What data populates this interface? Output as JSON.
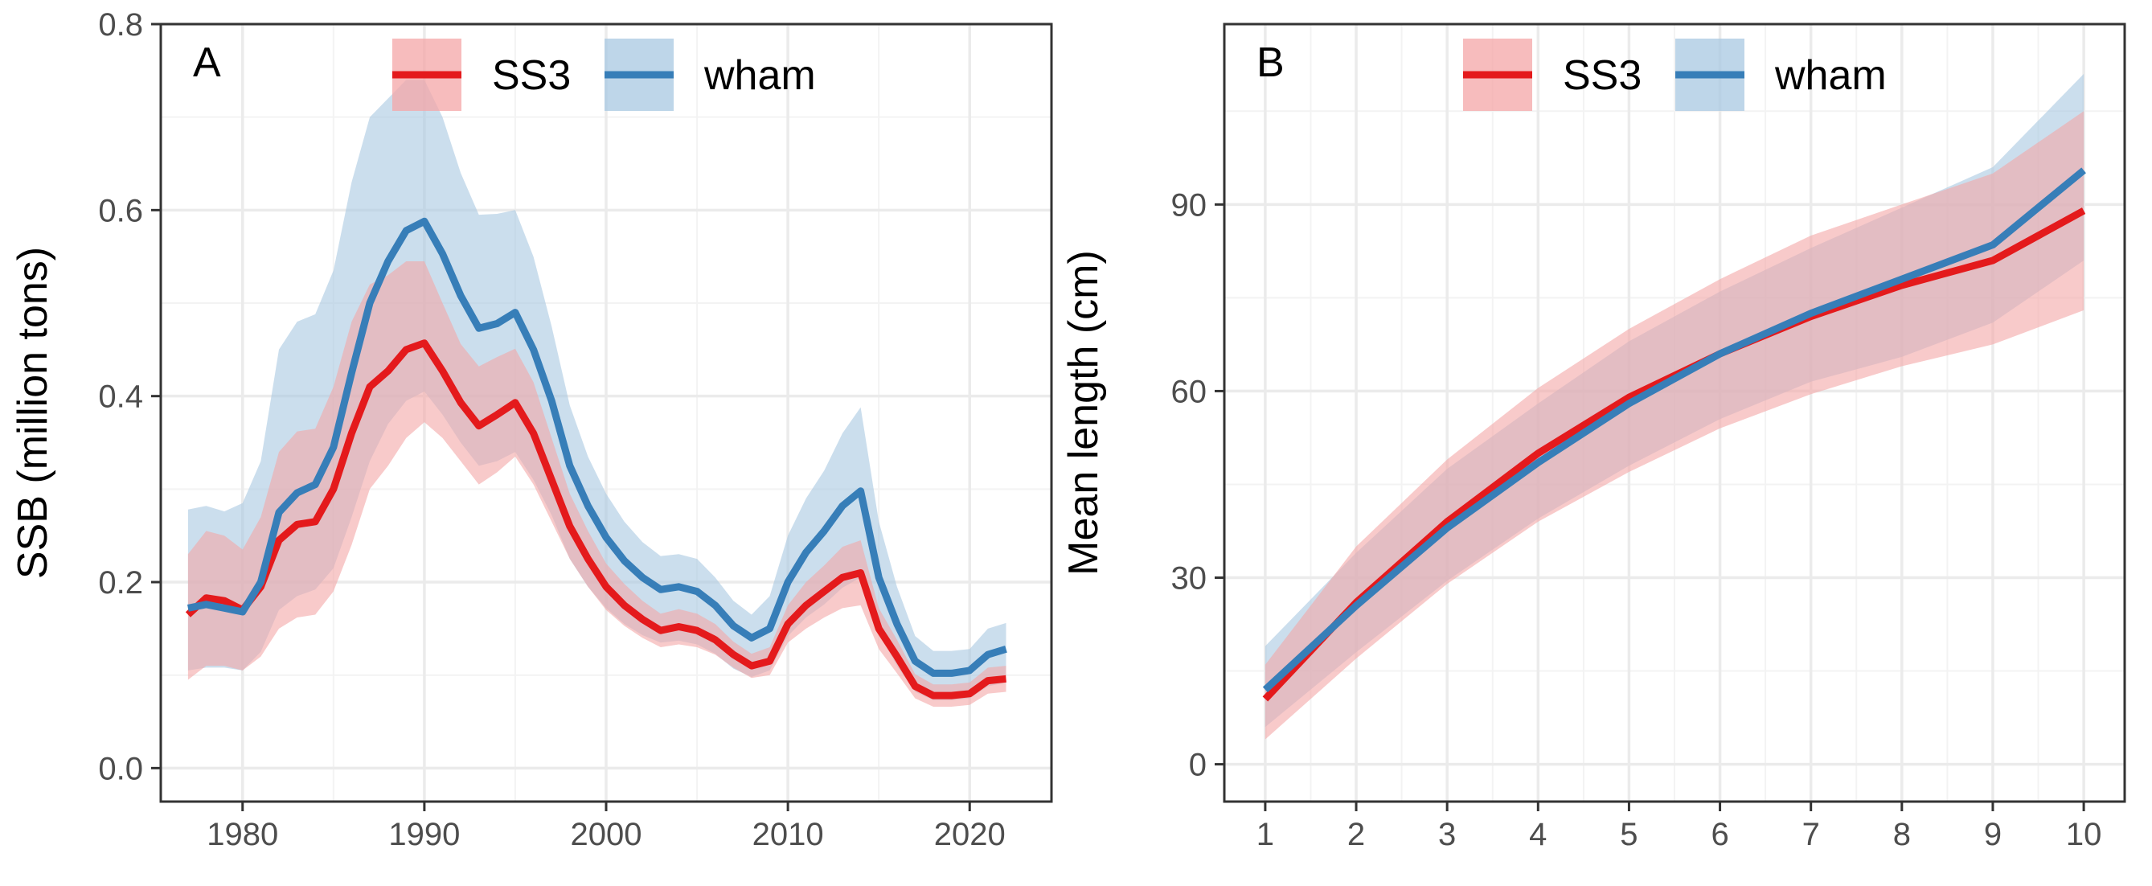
{
  "colors": {
    "SS3": "#E41A1C",
    "wham": "#377EB8",
    "SS3_band": "#F4A6A7",
    "wham_band": "#A8C8E1"
  },
  "chart_data": [
    {
      "type": "line",
      "panel_label": "A",
      "xlabel": "",
      "ylabel": "SSB (million tons)",
      "xlim": [
        1975.5,
        2024.5
      ],
      "ylim": [
        -0.036,
        0.8
      ],
      "xticks": [
        1980,
        1990,
        2000,
        2010,
        2020
      ],
      "xtick_labels": [
        "1980",
        "1990",
        "2000",
        "2010",
        "2020"
      ],
      "yticks": [
        0.0,
        0.2,
        0.4,
        0.6,
        0.8
      ],
      "ytick_labels": [
        "0.0",
        "0.2",
        "0.4",
        "0.6",
        "0.8"
      ],
      "grid": true,
      "legend": {
        "position": "top-center",
        "entries": [
          "SS3",
          "wham"
        ]
      },
      "x": [
        1977,
        1978,
        1979,
        1980,
        1981,
        1982,
        1983,
        1984,
        1985,
        1986,
        1987,
        1988,
        1989,
        1990,
        1991,
        1992,
        1993,
        1994,
        1995,
        1996,
        1997,
        1998,
        1999,
        2000,
        2001,
        2002,
        2003,
        2004,
        2005,
        2006,
        2007,
        2008,
        2009,
        2010,
        2011,
        2012,
        2013,
        2014,
        2015,
        2016,
        2017,
        2018,
        2019,
        2020,
        2021,
        2022
      ],
      "series": [
        {
          "name": "SS3",
          "values": [
            0.165,
            0.183,
            0.18,
            0.17,
            0.195,
            0.245,
            0.262,
            0.265,
            0.3,
            0.36,
            0.41,
            0.427,
            0.45,
            0.457,
            0.427,
            0.393,
            0.368,
            0.38,
            0.393,
            0.36,
            0.31,
            0.26,
            0.225,
            0.195,
            0.175,
            0.16,
            0.148,
            0.152,
            0.148,
            0.138,
            0.122,
            0.11,
            0.115,
            0.155,
            0.175,
            0.19,
            0.205,
            0.21,
            0.15,
            0.12,
            0.088,
            0.078,
            0.078,
            0.08,
            0.094,
            0.096
          ],
          "lower": [
            0.095,
            0.11,
            0.11,
            0.105,
            0.12,
            0.15,
            0.162,
            0.165,
            0.19,
            0.24,
            0.3,
            0.325,
            0.355,
            0.372,
            0.355,
            0.33,
            0.305,
            0.318,
            0.335,
            0.305,
            0.265,
            0.225,
            0.195,
            0.17,
            0.153,
            0.14,
            0.13,
            0.133,
            0.13,
            0.122,
            0.108,
            0.097,
            0.1,
            0.135,
            0.15,
            0.162,
            0.172,
            0.175,
            0.128,
            0.102,
            0.075,
            0.066,
            0.066,
            0.068,
            0.08,
            0.082
          ],
          "upper": [
            0.23,
            0.255,
            0.25,
            0.235,
            0.27,
            0.34,
            0.362,
            0.365,
            0.41,
            0.48,
            0.52,
            0.53,
            0.545,
            0.545,
            0.5,
            0.456,
            0.432,
            0.442,
            0.451,
            0.415,
            0.355,
            0.295,
            0.255,
            0.22,
            0.198,
            0.18,
            0.166,
            0.171,
            0.166,
            0.155,
            0.136,
            0.123,
            0.13,
            0.175,
            0.2,
            0.218,
            0.238,
            0.245,
            0.172,
            0.138,
            0.101,
            0.09,
            0.09,
            0.092,
            0.108,
            0.11
          ]
        },
        {
          "name": "wham",
          "values": [
            0.172,
            0.176,
            0.172,
            0.168,
            0.2,
            0.275,
            0.296,
            0.305,
            0.345,
            0.425,
            0.5,
            0.545,
            0.578,
            0.588,
            0.553,
            0.508,
            0.473,
            0.478,
            0.49,
            0.45,
            0.395,
            0.325,
            0.282,
            0.248,
            0.223,
            0.205,
            0.192,
            0.195,
            0.19,
            0.175,
            0.153,
            0.14,
            0.15,
            0.2,
            0.232,
            0.255,
            0.282,
            0.298,
            0.205,
            0.155,
            0.115,
            0.102,
            0.102,
            0.105,
            0.122,
            0.128
          ],
          "lower": [
            0.105,
            0.108,
            0.108,
            0.105,
            0.125,
            0.17,
            0.185,
            0.192,
            0.215,
            0.27,
            0.33,
            0.37,
            0.395,
            0.405,
            0.38,
            0.35,
            0.325,
            0.33,
            0.34,
            0.31,
            0.272,
            0.225,
            0.195,
            0.172,
            0.155,
            0.143,
            0.135,
            0.137,
            0.133,
            0.123,
            0.107,
            0.098,
            0.105,
            0.142,
            0.162,
            0.176,
            0.194,
            0.205,
            0.145,
            0.11,
            0.082,
            0.073,
            0.073,
            0.075,
            0.088,
            0.092
          ],
          "upper": [
            0.278,
            0.282,
            0.276,
            0.285,
            0.33,
            0.45,
            0.48,
            0.488,
            0.535,
            0.63,
            0.7,
            0.72,
            0.74,
            0.74,
            0.7,
            0.64,
            0.595,
            0.596,
            0.6,
            0.55,
            0.475,
            0.39,
            0.335,
            0.295,
            0.265,
            0.243,
            0.228,
            0.23,
            0.225,
            0.205,
            0.18,
            0.165,
            0.185,
            0.25,
            0.29,
            0.32,
            0.36,
            0.388,
            0.265,
            0.195,
            0.142,
            0.126,
            0.126,
            0.128,
            0.15,
            0.156
          ]
        }
      ]
    },
    {
      "type": "line",
      "panel_label": "B",
      "xlabel": "",
      "ylabel": "Mean length (cm)",
      "xlim": [
        0.55,
        10.45
      ],
      "ylim": [
        -6,
        119
      ],
      "xticks": [
        1,
        2,
        3,
        4,
        5,
        6,
        7,
        8,
        9,
        10
      ],
      "xtick_labels": [
        "1",
        "2",
        "3",
        "4",
        "5",
        "6",
        "7",
        "8",
        "9",
        "10"
      ],
      "yticks": [
        0,
        30,
        60,
        90
      ],
      "ytick_labels": [
        "0",
        "30",
        "60",
        "90"
      ],
      "grid": true,
      "legend": {
        "position": "top-center",
        "entries": [
          "SS3",
          "wham"
        ]
      },
      "x": [
        1,
        2,
        3,
        4,
        5,
        6,
        7,
        8,
        9,
        10
      ],
      "series": [
        {
          "name": "SS3",
          "values": [
            10.5,
            26,
            39,
            50,
            59,
            66,
            72,
            77,
            81,
            89
          ],
          "lower": [
            4,
            17,
            29,
            39,
            47,
            54,
            59.5,
            64,
            67.5,
            73
          ],
          "upper": [
            16,
            35,
            49,
            60.5,
            70,
            78,
            85,
            90,
            95,
            105
          ]
        },
        {
          "name": "wham",
          "values": [
            12,
            25.5,
            38,
            48.5,
            58,
            66,
            72.5,
            78,
            83.5,
            95.5
          ],
          "lower": [
            6,
            18,
            29.5,
            39.5,
            48,
            55.5,
            61.5,
            65.5,
            71,
            81
          ],
          "upper": [
            19,
            34,
            47.5,
            58,
            68,
            76,
            83,
            89.5,
            96,
            111
          ]
        }
      ]
    }
  ]
}
